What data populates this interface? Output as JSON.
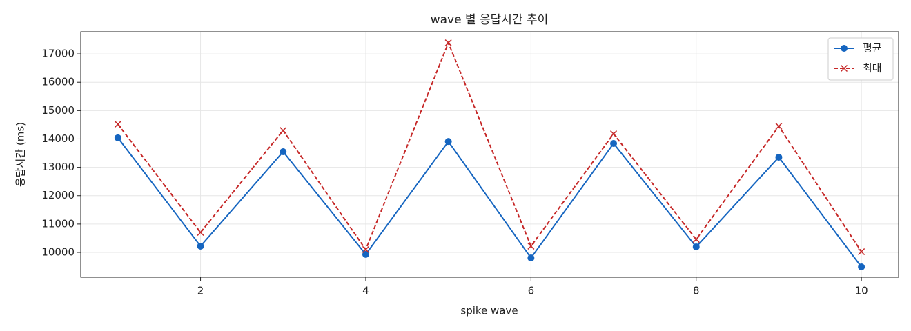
{
  "chart_data": {
    "type": "line",
    "title": "wave 별 응답시간 추이",
    "x_label": "spike wave",
    "y_label": "응답시간 (ms)",
    "x": [
      1,
      2,
      3,
      4,
      5,
      6,
      7,
      8,
      9,
      10
    ],
    "series": [
      {
        "name": "평균",
        "color": "#1565c0",
        "linestyle": "solid",
        "marker": "circle",
        "values": [
          14040,
          10220,
          13550,
          9930,
          13910,
          9805,
          13840,
          10195,
          13355,
          9490
        ]
      },
      {
        "name": "최대",
        "color": "#c62828",
        "linestyle": "dashed",
        "marker": "x",
        "values": [
          14520,
          10705,
          14300,
          10100,
          17390,
          10220,
          14180,
          10460,
          14450,
          10025
        ]
      }
    ],
    "xlim": [
      0.55,
      10.45
    ],
    "xticks": [
      2,
      4,
      6,
      8,
      10
    ],
    "ylim": [
      9125,
      17780
    ],
    "yticks": [
      10000,
      11000,
      12000,
      13000,
      14000,
      15000,
      16000,
      17000
    ],
    "grid": true,
    "legend": "upper-right"
  }
}
